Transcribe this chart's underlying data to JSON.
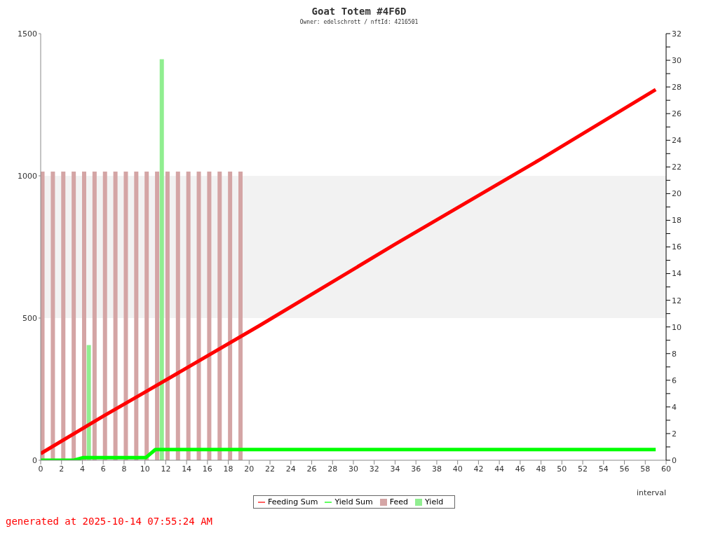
{
  "chart_data": {
    "type": "bar",
    "title": "Goat Totem #4F6D",
    "subtitle": "Owner: edelschrott / nftId: 4216501",
    "xlabel": "interval",
    "annotations": [
      "generated at 2025-10-14 07:55:24 AM"
    ],
    "x": [
      0.4,
      1.4,
      2.4,
      3.4,
      4.4,
      5.4,
      6.4,
      7.4,
      8.4,
      9.4,
      10.4,
      11.4,
      12.4,
      13.4,
      14.4,
      15.4,
      16.4,
      17.4,
      18.4,
      19.4
    ],
    "series": [
      {
        "name": "Feeding Sum",
        "type": "line",
        "axis": "y2",
        "color": "#ff0000",
        "x": [
          0,
          6,
          10,
          21,
          34,
          48,
          59
        ],
        "values": [
          0.5,
          3.3,
          5.1,
          10.1,
          16.2,
          22.6,
          27.8
        ]
      },
      {
        "name": "Yield Sum",
        "type": "line",
        "axis": "y2",
        "color": "#00ff00",
        "x": [
          0,
          3.2,
          4.1,
          10.1,
          11,
          59
        ],
        "values": [
          0,
          0,
          0.2,
          0.2,
          0.8,
          0.8
        ]
      },
      {
        "name": "Feed",
        "color": "#d4a5a5",
        "values": [
          1015,
          1015,
          1015,
          1015,
          1015,
          1015,
          1015,
          1015,
          1015,
          1015,
          1015,
          1015,
          1015,
          1015,
          1015,
          1015,
          1015,
          1015,
          1015,
          1015
        ]
      },
      {
        "name": "Yield",
        "color": "#90ee90",
        "values": [
          null,
          null,
          null,
          null,
          405,
          null,
          null,
          null,
          null,
          null,
          null,
          1410,
          null,
          null,
          null,
          null,
          null,
          null,
          null,
          null
        ]
      }
    ],
    "xlim": [
      0,
      60
    ],
    "xticks": [
      0,
      2,
      4,
      6,
      8,
      10,
      12,
      14,
      16,
      18,
      20,
      22,
      24,
      26,
      28,
      30,
      32,
      34,
      36,
      38,
      40,
      42,
      44,
      46,
      48,
      50,
      52,
      54,
      56,
      58,
      60
    ],
    "ylim": [
      0,
      1500
    ],
    "yticks": [
      0,
      500,
      1000,
      1500
    ],
    "y2lim": [
      0,
      32
    ],
    "y2ticks": [
      0,
      {
        "value": 1,
        "label": null
      },
      2,
      {
        "value": 3,
        "label": null
      },
      4,
      {
        "value": 5,
        "label": null
      },
      6,
      {
        "value": 7,
        "label": null
      },
      8,
      {
        "value": 9,
        "label": null
      },
      10,
      {
        "value": 11,
        "label": null
      },
      12,
      {
        "value": 13,
        "label": null
      },
      14,
      {
        "value": 15,
        "label": null
      },
      16,
      {
        "value": 17,
        "label": null
      },
      18,
      {
        "value": 19,
        "label": null
      },
      20,
      {
        "value": 21,
        "label": null
      },
      22,
      {
        "value": 23,
        "label": null
      },
      24,
      {
        "value": 25,
        "label": null
      },
      26,
      {
        "value": 27,
        "label": null
      },
      28,
      {
        "value": 29,
        "label": null
      },
      30,
      {
        "value": 31,
        "label": null
      },
      32
    ],
    "bands": [
      {
        "axis": "y",
        "from": 500,
        "to": 1000,
        "color": "#f2f2f2"
      }
    ],
    "grid": false,
    "legend": "bottom"
  }
}
